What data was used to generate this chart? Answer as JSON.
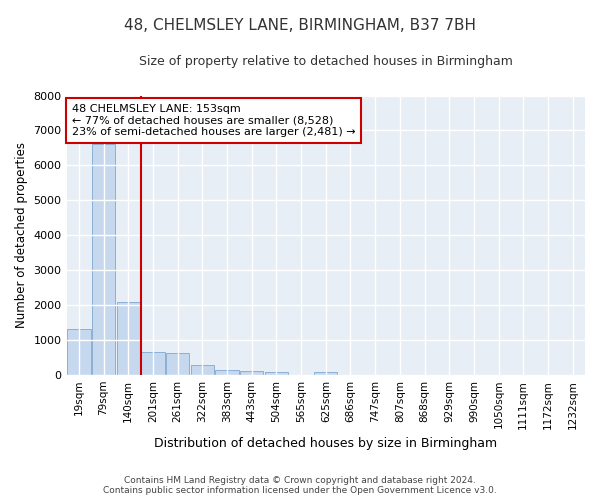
{
  "title": "48, CHELMSLEY LANE, BIRMINGHAM, B37 7BH",
  "subtitle": "Size of property relative to detached houses in Birmingham",
  "xlabel": "Distribution of detached houses by size in Birmingham",
  "ylabel": "Number of detached properties",
  "bin_labels": [
    "19sqm",
    "79sqm",
    "140sqm",
    "201sqm",
    "261sqm",
    "322sqm",
    "383sqm",
    "443sqm",
    "504sqm",
    "565sqm",
    "625sqm",
    "686sqm",
    "747sqm",
    "807sqm",
    "868sqm",
    "929sqm",
    "990sqm",
    "1050sqm",
    "1111sqm",
    "1172sqm",
    "1232sqm"
  ],
  "bar_values": [
    1320,
    6600,
    2080,
    650,
    640,
    295,
    155,
    120,
    100,
    0,
    100,
    0,
    0,
    0,
    0,
    0,
    0,
    0,
    0,
    0,
    0
  ],
  "bar_color": "#c5d8ee",
  "bar_edge_color": "#8ab0d4",
  "vline_color": "#cc0000",
  "ylim": [
    0,
    8000
  ],
  "yticks": [
    0,
    1000,
    2000,
    3000,
    4000,
    5000,
    6000,
    7000,
    8000
  ],
  "annotation_text": "48 CHELMSLEY LANE: 153sqm\n← 77% of detached houses are smaller (8,528)\n23% of semi-detached houses are larger (2,481) →",
  "annotation_box_color": "#ffffff",
  "annotation_box_edge_color": "#cc0000",
  "bg_color": "#e8eef5",
  "grid_color": "#ffffff",
  "title_fontsize": 11,
  "subtitle_fontsize": 9,
  "footer_line1": "Contains HM Land Registry data © Crown copyright and database right 2024.",
  "footer_line2": "Contains public sector information licensed under the Open Government Licence v3.0."
}
